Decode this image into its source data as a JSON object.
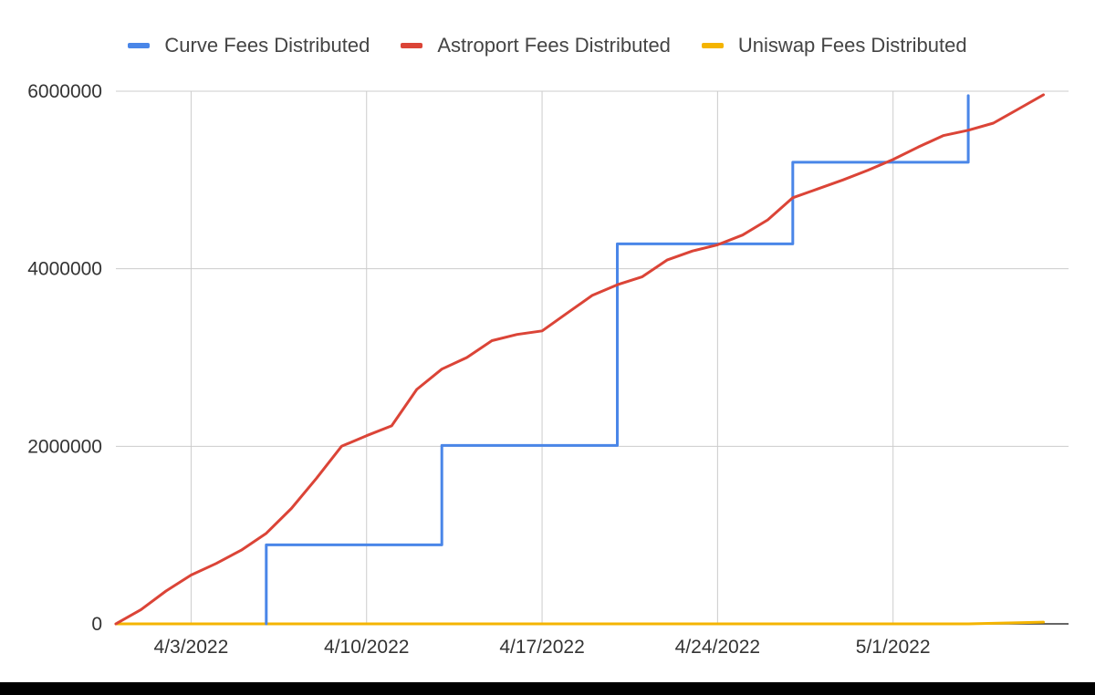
{
  "chart_data": {
    "type": "line",
    "title": "",
    "xlabel": "",
    "ylabel": "",
    "x_axis": {
      "type": "date",
      "range": [
        "2022-03-31",
        "2022-05-08"
      ],
      "ticks": [
        {
          "label": "4/3/2022",
          "date": "2022-04-03"
        },
        {
          "label": "4/10/2022",
          "date": "2022-04-10"
        },
        {
          "label": "4/17/2022",
          "date": "2022-04-17"
        },
        {
          "label": "4/24/2022",
          "date": "2022-04-24"
        },
        {
          "label": "5/1/2022",
          "date": "2022-05-01"
        }
      ]
    },
    "y_axis": {
      "range": [
        0,
        6000000
      ],
      "ticks": [
        {
          "label": "0",
          "value": 0
        },
        {
          "label": "2000000",
          "value": 2000000
        },
        {
          "label": "4000000",
          "value": 4000000
        },
        {
          "label": "6000000",
          "value": 6000000
        }
      ]
    },
    "grid": true,
    "legend_position": "top",
    "series": [
      {
        "name": "Curve Fees Distributed",
        "color": "#4a86e8",
        "step": true,
        "points": [
          [
            "2022-04-06",
            0
          ],
          [
            "2022-04-06",
            890000
          ],
          [
            "2022-04-13",
            890000
          ],
          [
            "2022-04-13",
            2010000
          ],
          [
            "2022-04-20",
            2010000
          ],
          [
            "2022-04-20",
            4280000
          ],
          [
            "2022-04-27",
            4280000
          ],
          [
            "2022-04-27",
            5200000
          ],
          [
            "2022-05-04",
            5200000
          ],
          [
            "2022-05-04",
            5950000
          ]
        ]
      },
      {
        "name": "Astroport Fees Distributed",
        "color": "#db4437",
        "step": false,
        "points": [
          [
            "2022-03-31",
            0
          ],
          [
            "2022-04-01",
            160000
          ],
          [
            "2022-04-02",
            370000
          ],
          [
            "2022-04-03",
            550000
          ],
          [
            "2022-04-04",
            680000
          ],
          [
            "2022-04-05",
            830000
          ],
          [
            "2022-04-06",
            1020000
          ],
          [
            "2022-04-07",
            1300000
          ],
          [
            "2022-04-08",
            1640000
          ],
          [
            "2022-04-09",
            2000000
          ],
          [
            "2022-04-10",
            2120000
          ],
          [
            "2022-04-11",
            2230000
          ],
          [
            "2022-04-12",
            2640000
          ],
          [
            "2022-04-13",
            2870000
          ],
          [
            "2022-04-14",
            3000000
          ],
          [
            "2022-04-15",
            3190000
          ],
          [
            "2022-04-16",
            3260000
          ],
          [
            "2022-04-17",
            3300000
          ],
          [
            "2022-04-18",
            3500000
          ],
          [
            "2022-04-19",
            3700000
          ],
          [
            "2022-04-20",
            3820000
          ],
          [
            "2022-04-21",
            3910000
          ],
          [
            "2022-04-22",
            4100000
          ],
          [
            "2022-04-23",
            4200000
          ],
          [
            "2022-04-24",
            4270000
          ],
          [
            "2022-04-25",
            4380000
          ],
          [
            "2022-04-26",
            4550000
          ],
          [
            "2022-04-27",
            4800000
          ],
          [
            "2022-04-28",
            4900000
          ],
          [
            "2022-04-29",
            5000000
          ],
          [
            "2022-04-30",
            5110000
          ],
          [
            "2022-05-01",
            5230000
          ],
          [
            "2022-05-02",
            5370000
          ],
          [
            "2022-05-03",
            5500000
          ],
          [
            "2022-05-04",
            5560000
          ],
          [
            "2022-05-05",
            5640000
          ],
          [
            "2022-05-06",
            5800000
          ],
          [
            "2022-05-07",
            5960000
          ]
        ]
      },
      {
        "name": "Uniswap Fees Distributed",
        "color": "#f4b400",
        "step": false,
        "points": [
          [
            "2022-03-31",
            0
          ],
          [
            "2022-05-04",
            0
          ],
          [
            "2022-05-07",
            20000
          ]
        ]
      }
    ]
  }
}
